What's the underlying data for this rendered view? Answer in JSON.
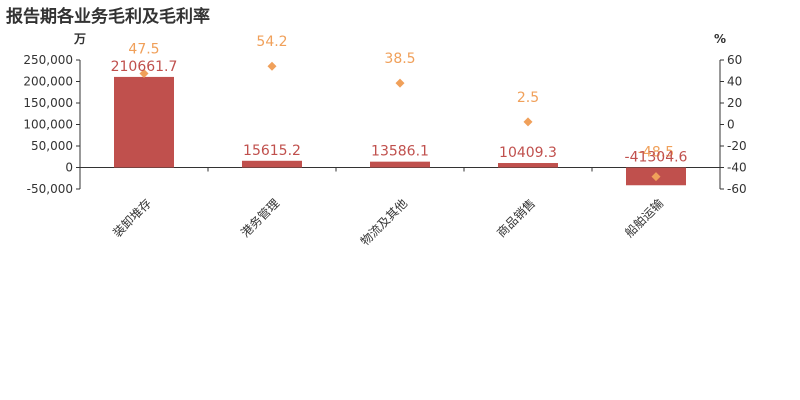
{
  "title": "报告期各业务毛利及毛利率",
  "chart_data": {
    "type": "bar",
    "title": "报告期各业务毛利及毛利率",
    "categories": [
      "装卸堆存",
      "港务管理",
      "物流及其他",
      "商品销售",
      "船舶运输"
    ],
    "series": [
      {
        "type": "bar",
        "axis": "left",
        "values": [
          210661.7,
          15615.2,
          13586.1,
          10409.3,
          -41304.6
        ],
        "color": "#c0504d"
      },
      {
        "type": "scatter",
        "axis": "right",
        "values": [
          47.5,
          54.2,
          38.5,
          2.5,
          -48.5
        ],
        "color": "#f0a05a"
      }
    ],
    "y_left": {
      "unit": "万",
      "ylim": [
        -50000,
        250000
      ],
      "ticks": [
        250000,
        200000,
        150000,
        100000,
        50000,
        0,
        -50000
      ],
      "tick_labels": [
        "250,000",
        "200,000",
        "150,000",
        "100,000",
        "50,000",
        "0",
        "-50,000"
      ]
    },
    "y_right": {
      "unit": "%",
      "ylim": [
        -60,
        60
      ],
      "ticks": [
        60,
        40,
        20,
        0,
        -20,
        -40,
        -60
      ],
      "tick_labels": [
        "60",
        "40",
        "20",
        "0",
        "-20",
        "-40",
        "-60"
      ]
    },
    "bar_labels": [
      "210661.7",
      "15615.2",
      "13586.1",
      "10409.3",
      "-41304.6"
    ],
    "point_labels": [
      "47.5",
      "54.2",
      "38.5",
      "2.5",
      "-48.5"
    ],
    "grid": false,
    "legend": "none"
  }
}
